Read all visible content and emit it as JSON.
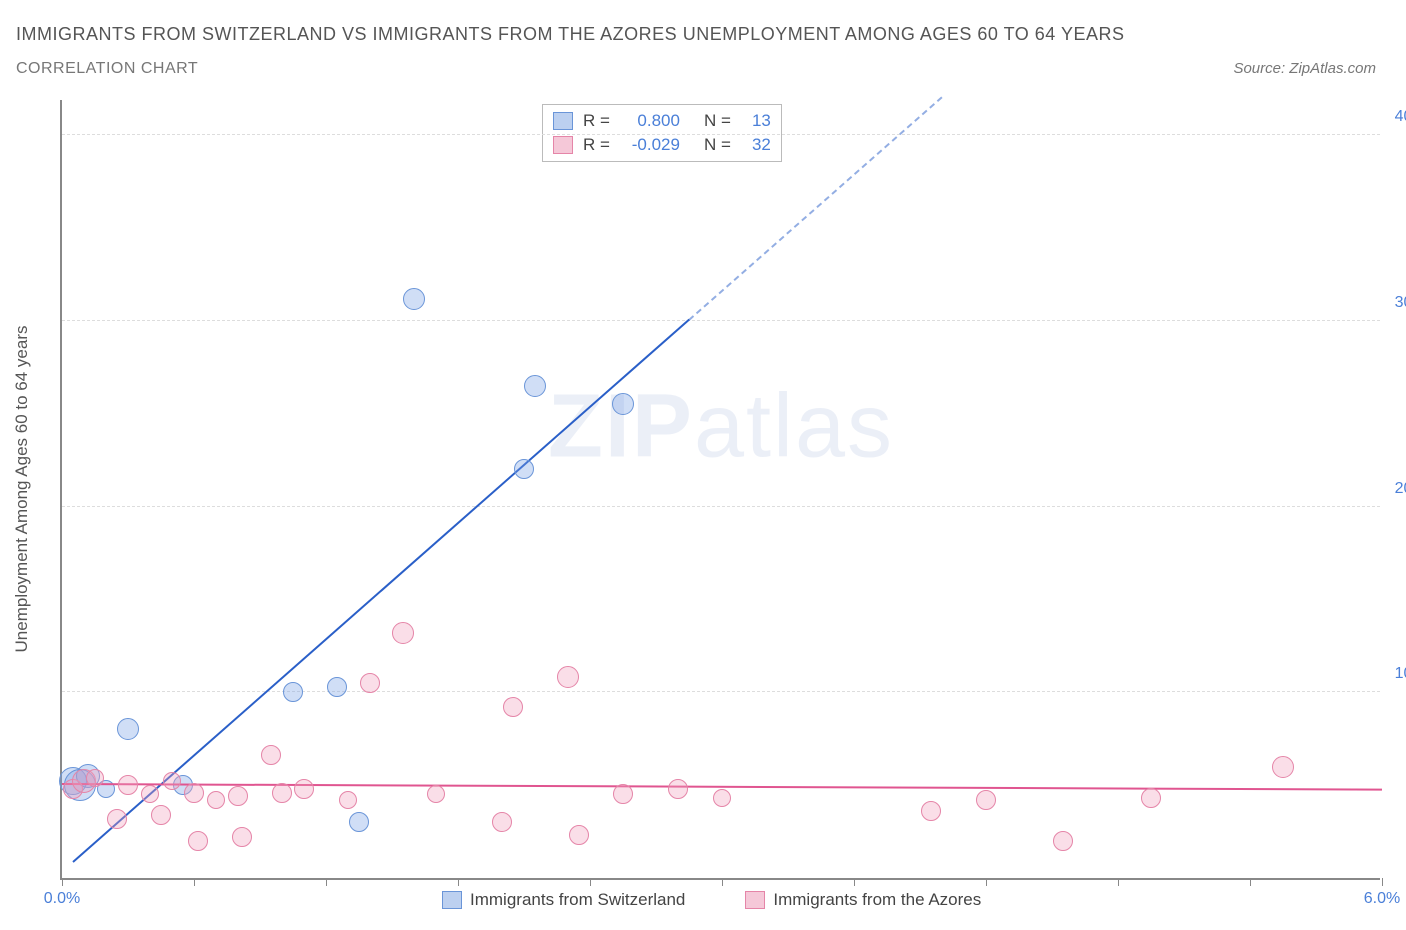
{
  "title": "IMMIGRANTS FROM SWITZERLAND VS IMMIGRANTS FROM THE AZORES UNEMPLOYMENT AMONG AGES 60 TO 64 YEARS",
  "subtitle": "CORRELATION CHART",
  "source": "Source: ZipAtlas.com",
  "y_axis_label": "Unemployment Among Ages 60 to 64 years",
  "watermark": "ZIPatlas",
  "chart": {
    "type": "scatter",
    "xlim": [
      0,
      6
    ],
    "ylim": [
      0,
      42
    ],
    "x_ticks": [
      0,
      0.6,
      1.2,
      1.8,
      2.4,
      3.0,
      3.6,
      4.2,
      4.8,
      5.4,
      6.0
    ],
    "x_tick_labels": {
      "0": "0.0%",
      "6": "6.0%"
    },
    "y_grid": [
      10,
      20,
      30,
      40
    ],
    "y_tick_labels": {
      "10": "10.0%",
      "20": "20.0%",
      "30": "30.0%",
      "40": "40.0%"
    },
    "background_color": "#ffffff",
    "grid_color": "#dddddd",
    "axis_color": "#888888"
  },
  "series": [
    {
      "key": "switzerland",
      "label": "Immigrants from Switzerland",
      "fill": "rgba(120,160,230,0.35)",
      "stroke": "#6a95d8",
      "swatch_fill": "#bcd0f0",
      "swatch_border": "#6a95d8",
      "r_stat": "0.800",
      "n_stat": "13",
      "trend": {
        "x1": 0.05,
        "y1": 0.8,
        "x2": 2.85,
        "y2": 30.0,
        "x2_dash": 4.0,
        "y2_dash": 42.0,
        "color": "#2a5fc8",
        "width": 2
      },
      "points": [
        {
          "x": 0.05,
          "y": 5.2,
          "r": 14
        },
        {
          "x": 0.08,
          "y": 5.0,
          "r": 16
        },
        {
          "x": 0.12,
          "y": 5.5,
          "r": 12
        },
        {
          "x": 0.3,
          "y": 8.0,
          "r": 11
        },
        {
          "x": 0.55,
          "y": 5.0,
          "r": 10
        },
        {
          "x": 1.05,
          "y": 10.0,
          "r": 10
        },
        {
          "x": 1.25,
          "y": 10.3,
          "r": 10
        },
        {
          "x": 1.35,
          "y": 3.0,
          "r": 10
        },
        {
          "x": 1.6,
          "y": 31.2,
          "r": 11
        },
        {
          "x": 2.1,
          "y": 22.0,
          "r": 10
        },
        {
          "x": 2.15,
          "y": 26.5,
          "r": 11
        },
        {
          "x": 2.55,
          "y": 25.5,
          "r": 11
        },
        {
          "x": 0.2,
          "y": 4.8,
          "r": 9
        }
      ]
    },
    {
      "key": "azores",
      "label": "Immigrants from the Azores",
      "fill": "rgba(240,160,190,0.35)",
      "stroke": "#e585a8",
      "swatch_fill": "#f5c8d8",
      "swatch_border": "#e585a8",
      "r_stat": "-0.029",
      "n_stat": "32",
      "trend": {
        "x1": 0.0,
        "y1": 5.0,
        "x2": 6.0,
        "y2": 4.7,
        "color": "#e05590",
        "width": 2
      },
      "points": [
        {
          "x": 0.05,
          "y": 4.8,
          "r": 10
        },
        {
          "x": 0.1,
          "y": 5.2,
          "r": 12
        },
        {
          "x": 0.25,
          "y": 3.2,
          "r": 10
        },
        {
          "x": 0.3,
          "y": 5.0,
          "r": 10
        },
        {
          "x": 0.4,
          "y": 4.5,
          "r": 9
        },
        {
          "x": 0.45,
          "y": 3.4,
          "r": 10
        },
        {
          "x": 0.5,
          "y": 5.2,
          "r": 9
        },
        {
          "x": 0.6,
          "y": 4.6,
          "r": 10
        },
        {
          "x": 0.62,
          "y": 2.0,
          "r": 10
        },
        {
          "x": 0.8,
          "y": 4.4,
          "r": 10
        },
        {
          "x": 0.82,
          "y": 2.2,
          "r": 10
        },
        {
          "x": 0.95,
          "y": 6.6,
          "r": 10
        },
        {
          "x": 1.0,
          "y": 4.6,
          "r": 10
        },
        {
          "x": 1.1,
          "y": 4.8,
          "r": 10
        },
        {
          "x": 1.3,
          "y": 4.2,
          "r": 9
        },
        {
          "x": 1.4,
          "y": 10.5,
          "r": 10
        },
        {
          "x": 1.55,
          "y": 13.2,
          "r": 11
        },
        {
          "x": 1.7,
          "y": 4.5,
          "r": 9
        },
        {
          "x": 2.0,
          "y": 3.0,
          "r": 10
        },
        {
          "x": 2.05,
          "y": 9.2,
          "r": 10
        },
        {
          "x": 2.3,
          "y": 10.8,
          "r": 11
        },
        {
          "x": 2.35,
          "y": 2.3,
          "r": 10
        },
        {
          "x": 2.55,
          "y": 4.5,
          "r": 10
        },
        {
          "x": 2.8,
          "y": 4.8,
          "r": 10
        },
        {
          "x": 3.0,
          "y": 4.3,
          "r": 9
        },
        {
          "x": 3.95,
          "y": 3.6,
          "r": 10
        },
        {
          "x": 4.2,
          "y": 4.2,
          "r": 10
        },
        {
          "x": 4.55,
          "y": 2.0,
          "r": 10
        },
        {
          "x": 4.95,
          "y": 4.3,
          "r": 10
        },
        {
          "x": 5.55,
          "y": 6.0,
          "r": 11
        },
        {
          "x": 0.15,
          "y": 5.4,
          "r": 9
        },
        {
          "x": 0.7,
          "y": 4.2,
          "r": 9
        }
      ]
    }
  ]
}
